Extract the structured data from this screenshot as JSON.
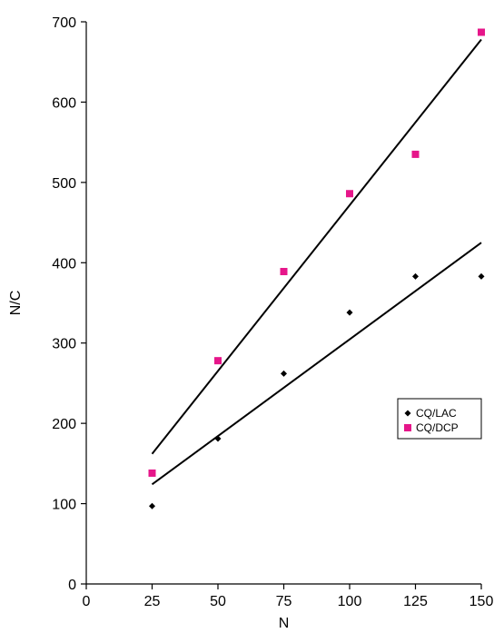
{
  "chart_data": {
    "type": "scatter",
    "title": "",
    "xlabel": "N",
    "ylabel": "N/C",
    "xlim": [
      0,
      150
    ],
    "ylim": [
      0,
      700
    ],
    "xticks": [
      0,
      25,
      50,
      75,
      100,
      125,
      150
    ],
    "yticks": [
      0,
      100,
      200,
      300,
      400,
      500,
      600,
      700
    ],
    "grid": false,
    "legend_position": "right",
    "series": [
      {
        "name": "CQ/LAC",
        "marker": "diamond",
        "color": "#000000",
        "x": [
          25,
          50,
          75,
          100,
          125,
          150
        ],
        "y": [
          97,
          181,
          262,
          338,
          383,
          383
        ],
        "trendline": {
          "x": [
            25,
            150
          ],
          "y": [
            124,
            425
          ]
        }
      },
      {
        "name": "CQ/DCP",
        "marker": "square",
        "color": "#e6168a",
        "x": [
          25,
          50,
          75,
          100,
          125,
          150
        ],
        "y": [
          138,
          278,
          389,
          486,
          535,
          687
        ],
        "trendline": {
          "x": [
            25,
            150
          ],
          "y": [
            162,
            678
          ]
        }
      }
    ]
  }
}
